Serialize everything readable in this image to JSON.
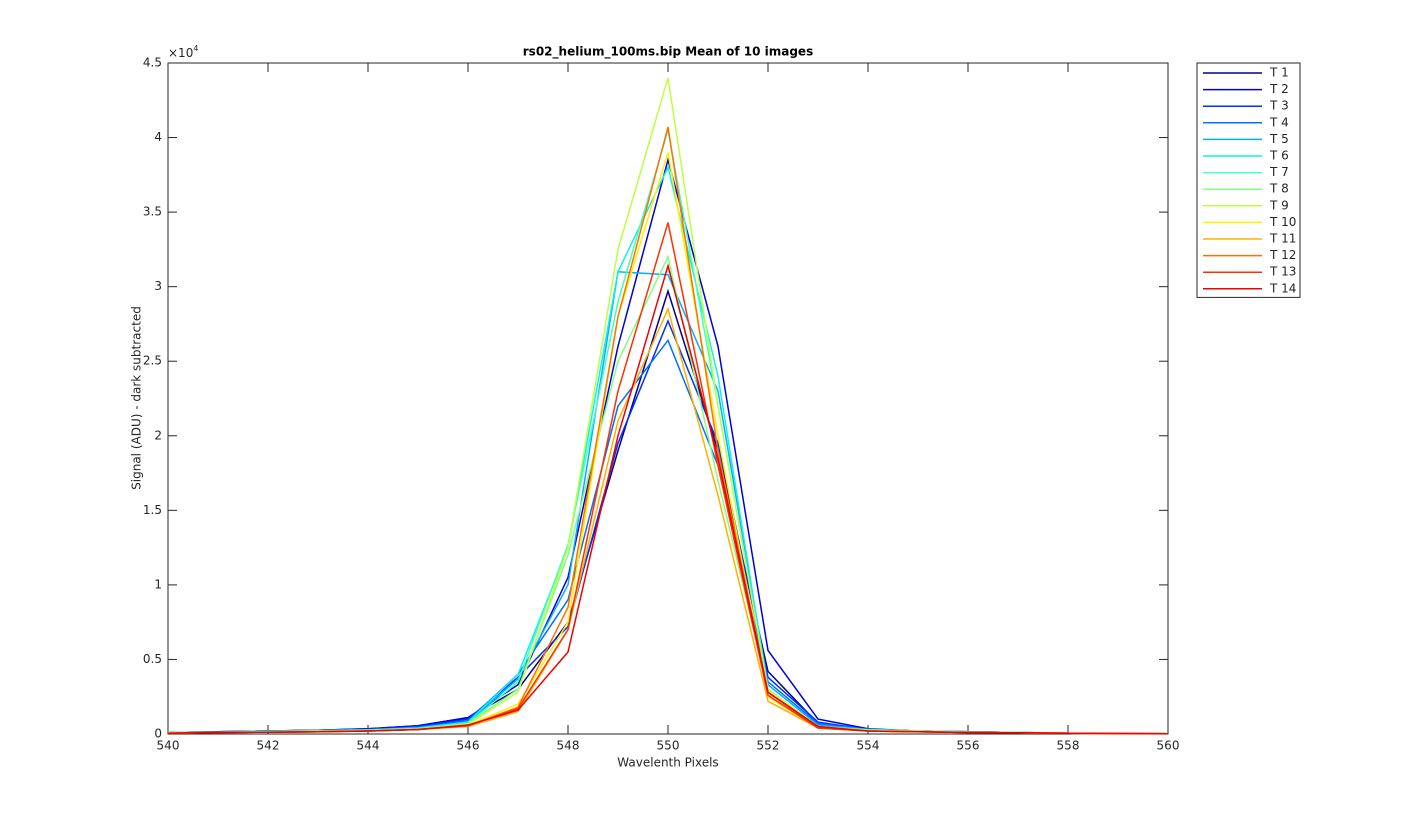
{
  "chart_data": {
    "type": "line",
    "title": "rs02_helium_100ms.bip  Mean of 10 images",
    "x_label": "Wavelenth Pixels",
    "y_label": "Signal (ADU) - dark subtracted",
    "y_multiplier": {
      "base": "×10",
      "exponent": "4"
    },
    "x": [
      540,
      541,
      542,
      543,
      544,
      545,
      546,
      547,
      548,
      549,
      550,
      551,
      552,
      553,
      554,
      555,
      556,
      557,
      558,
      559,
      560
    ],
    "xlim": [
      540,
      560
    ],
    "xticks": [
      540,
      542,
      544,
      546,
      548,
      550,
      552,
      554,
      556,
      558,
      560
    ],
    "ylim": [
      0,
      4.5
    ],
    "yticks": [
      0,
      0.5,
      1,
      1.5,
      2,
      2.5,
      3,
      3.5,
      4,
      4.5
    ],
    "grid": false,
    "legend": "outside-right",
    "series": [
      {
        "name": "T 1",
        "color": "#00008f",
        "values": [
          0.01,
          0.015,
          0.02,
          0.025,
          0.035,
          0.055,
          0.11,
          0.3,
          0.75,
          1.9,
          2.97,
          1.9,
          0.42,
          0.07,
          0.03,
          0.02,
          0.015,
          0.01,
          0.005,
          0.003,
          0.002
        ]
      },
      {
        "name": "T 2",
        "color": "#0000d8",
        "values": [
          0.01,
          0.015,
          0.02,
          0.025,
          0.035,
          0.055,
          0.11,
          0.33,
          1.05,
          2.6,
          3.85,
          2.6,
          0.56,
          0.1,
          0.035,
          0.02,
          0.015,
          0.01,
          0.005,
          0.003,
          0.002
        ]
      },
      {
        "name": "T 3",
        "color": "#0030ff",
        "values": [
          0.01,
          0.015,
          0.02,
          0.025,
          0.03,
          0.05,
          0.1,
          0.38,
          0.72,
          1.95,
          2.77,
          1.95,
          0.38,
          0.08,
          0.03,
          0.02,
          0.015,
          0.01,
          0.005,
          0.003,
          0.002
        ]
      },
      {
        "name": "T 4",
        "color": "#0070ff",
        "values": [
          0.01,
          0.015,
          0.02,
          0.025,
          0.03,
          0.045,
          0.09,
          0.4,
          0.9,
          2.2,
          2.64,
          1.8,
          0.35,
          0.07,
          0.03,
          0.02,
          0.015,
          0.01,
          0.005,
          0.003,
          0.002
        ]
      },
      {
        "name": "T 5",
        "color": "#00b0ff",
        "values": [
          0.01,
          0.012,
          0.018,
          0.022,
          0.028,
          0.04,
          0.08,
          0.37,
          1.0,
          3.1,
          3.08,
          2.3,
          0.33,
          0.06,
          0.03,
          0.02,
          0.015,
          0.01,
          0.005,
          0.003,
          0.002
        ]
      },
      {
        "name": "T 6",
        "color": "#10efef",
        "values": [
          0.01,
          0.012,
          0.018,
          0.022,
          0.028,
          0.04,
          0.08,
          0.4,
          1.25,
          3.1,
          3.8,
          2.4,
          0.3,
          0.05,
          0.03,
          0.02,
          0.015,
          0.01,
          0.005,
          0.003,
          0.002
        ]
      },
      {
        "name": "T 7",
        "color": "#40ffbf",
        "values": [
          0.008,
          0.012,
          0.015,
          0.02,
          0.025,
          0.035,
          0.07,
          0.35,
          1.27,
          2.9,
          4.05,
          2.2,
          0.3,
          0.05,
          0.025,
          0.02,
          0.012,
          0.01,
          0.005,
          0.003,
          0.002
        ]
      },
      {
        "name": "T 8",
        "color": "#80ff80",
        "values": [
          0.008,
          0.012,
          0.015,
          0.02,
          0.025,
          0.035,
          0.07,
          0.3,
          1.2,
          2.5,
          3.2,
          1.7,
          0.3,
          0.05,
          0.025,
          0.02,
          0.012,
          0.01,
          0.005,
          0.003,
          0.002
        ]
      },
      {
        "name": "T 9",
        "color": "#bfff40",
        "values": [
          0.008,
          0.01,
          0.015,
          0.018,
          0.022,
          0.032,
          0.065,
          0.28,
          1.25,
          3.25,
          4.4,
          2.2,
          0.3,
          0.05,
          0.025,
          0.018,
          0.012,
          0.008,
          0.005,
          0.003,
          0.002
        ]
      },
      {
        "name": "T 10",
        "color": "#ffef00",
        "values": [
          0.006,
          0.01,
          0.012,
          0.016,
          0.02,
          0.03,
          0.06,
          0.2,
          0.75,
          2.8,
          3.9,
          2.0,
          0.25,
          0.04,
          0.02,
          0.015,
          0.01,
          0.008,
          0.005,
          0.003,
          0.002
        ]
      },
      {
        "name": "T 11",
        "color": "#ffb000",
        "values": [
          0.006,
          0.01,
          0.012,
          0.015,
          0.02,
          0.03,
          0.05,
          0.15,
          0.7,
          2.1,
          2.85,
          1.6,
          0.22,
          0.04,
          0.02,
          0.015,
          0.01,
          0.008,
          0.005,
          0.003,
          0.002
        ]
      },
      {
        "name": "T 12",
        "color": "#ff7000",
        "values": [
          0.006,
          0.01,
          0.012,
          0.015,
          0.02,
          0.03,
          0.055,
          0.18,
          0.85,
          2.8,
          4.07,
          1.9,
          0.28,
          0.04,
          0.02,
          0.015,
          0.01,
          0.008,
          0.005,
          0.003,
          0.002
        ]
      },
      {
        "name": "T 13",
        "color": "#ff3000",
        "values": [
          0.005,
          0.01,
          0.012,
          0.015,
          0.02,
          0.03,
          0.055,
          0.17,
          0.7,
          2.3,
          3.43,
          1.8,
          0.26,
          0.04,
          0.02,
          0.015,
          0.01,
          0.008,
          0.005,
          0.003,
          0.002
        ]
      },
      {
        "name": "T 14",
        "color": "#ee0000",
        "values": [
          0.005,
          0.01,
          0.012,
          0.015,
          0.02,
          0.03,
          0.06,
          0.16,
          0.55,
          2.0,
          3.14,
          1.85,
          0.28,
          0.05,
          0.02,
          0.015,
          0.01,
          0.008,
          0.005,
          0.003,
          0.002
        ]
      }
    ]
  }
}
